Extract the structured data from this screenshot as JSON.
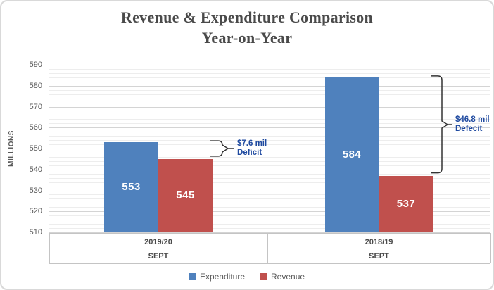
{
  "title": {
    "line1": "Revenue & Expenditure Comparison",
    "line2": "Year-on-Year"
  },
  "y_axis": {
    "label": "MILLIONS"
  },
  "chart_data": {
    "type": "bar",
    "title": "Revenue & Expenditure Comparison Year-on-Year",
    "ylabel": "MILLIONS",
    "xlabel": "",
    "ylim": [
      510,
      590
    ],
    "y_major_step": 10,
    "y_minor_step": 2,
    "grid": true,
    "legend_position": "bottom",
    "categories": [
      {
        "year": "2019/20",
        "month": "SEPT"
      },
      {
        "year": "2018/19",
        "month": "SEPT"
      }
    ],
    "series": [
      {
        "name": "Expenditure",
        "color": "#4F81BD",
        "values": [
          553,
          584
        ]
      },
      {
        "name": "Revenue",
        "color": "#C0504D",
        "values": [
          545,
          537
        ]
      }
    ],
    "annotations": [
      {
        "group": 0,
        "line1": "$7.6 mil",
        "line2": "Deficit"
      },
      {
        "group": 1,
        "line1": "$46.8 mil",
        "line2": "Defecit"
      }
    ]
  },
  "colors": {
    "expenditure": "#4F81BD",
    "revenue": "#C0504D",
    "annotation_text": "#1F4AA0",
    "title_text": "#4A4A4A",
    "axis_text": "#595959",
    "grid_major": "#D4D4D4",
    "grid_minor": "#EDEDED",
    "category_box": "#C4C4C4",
    "bracket": "#333333",
    "frame": "#D9D9D9"
  }
}
